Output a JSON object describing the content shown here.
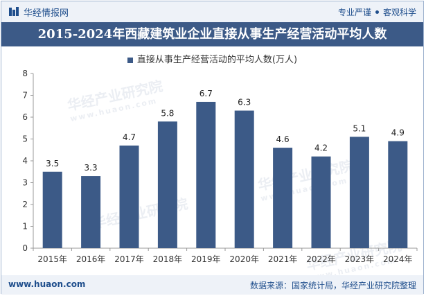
{
  "header": {
    "brand": "华经情报网",
    "tagline_left": "专业严谨",
    "tagline_right": "客观科学"
  },
  "footer": {
    "website": "www.huaon.com",
    "source": "数据来源：国家统计局，华经产业研究院整理"
  },
  "watermark": {
    "text": "华经产业研究院",
    "url": "www.huaon.com"
  },
  "colors": {
    "bar": "#3c5a87",
    "title_bg": "#3c5a87",
    "header_bg": "#eef2f8"
  },
  "chart_data": {
    "type": "bar",
    "title": "2015-2024年西藏建筑业企业直接从事生产经营活动平均人数",
    "categories": [
      "2015年",
      "2016年",
      "2017年",
      "2018年",
      "2019年",
      "2020年",
      "2021年",
      "2022年",
      "2023年",
      "2024年"
    ],
    "series": [
      {
        "name": "直接从事生产经营活动的平均人数(万人)",
        "values": [
          3.5,
          3.3,
          4.7,
          5.8,
          6.7,
          6.3,
          4.6,
          4.2,
          5.1,
          4.9
        ]
      }
    ],
    "value_labels": [
      "3.5",
      "3.3",
      "4.7",
      "5.8",
      "6.7",
      "6.3",
      "4.6",
      "4.2",
      "5.1",
      "4.9"
    ],
    "yticks": [
      "0",
      "1",
      "2",
      "3",
      "4",
      "5",
      "6",
      "7",
      "8"
    ],
    "ylim": [
      0,
      8
    ],
    "legend_position": "top-center",
    "grid": false
  }
}
